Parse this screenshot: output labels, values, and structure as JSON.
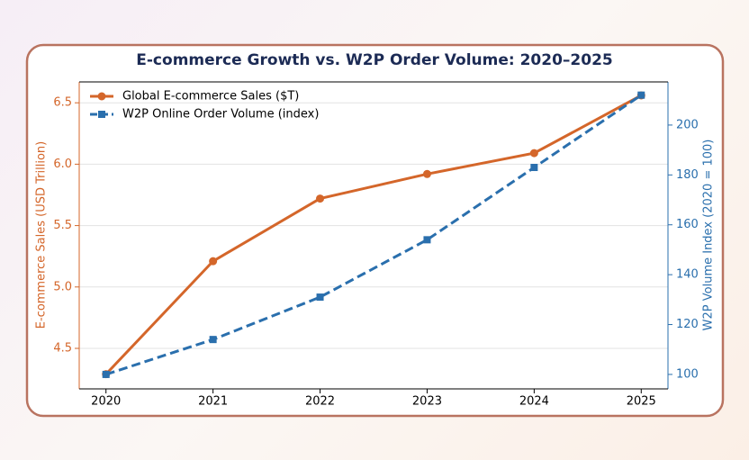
{
  "chart_data": {
    "type": "line",
    "title": "E-commerce Growth vs. W2P Order Volume: 2020–2025",
    "ylabel": "E-commerce Sales (USD Trillion)",
    "y2label": "W2P Volume Index (2020 = 100)",
    "x": [
      2020,
      2021,
      2022,
      2023,
      2024,
      2025
    ],
    "xlim": [
      2019.75,
      2025.25
    ],
    "xticks": [
      2020,
      2021,
      2022,
      2023,
      2024,
      2025
    ],
    "ylim": [
      4.17,
      6.67
    ],
    "yticks": [
      4.5,
      {
        "value": 5,
        "label": "5.0"
      },
      5.5,
      {
        "value": 6,
        "label": "6.0"
      },
      6.5
    ],
    "y2lim": [
      94.2,
      217.3
    ],
    "y2ticks": [
      100,
      120,
      140,
      160,
      180,
      200
    ],
    "grid": true,
    "legend": "upper left",
    "series": [
      {
        "name": "Global E-commerce Sales ($T)",
        "color": "#d4662a",
        "marker": "circle",
        "linestyle": "solid",
        "values": [
          4.29,
          5.21,
          5.72,
          5.92,
          6.09,
          6.56
        ]
      },
      {
        "name": "W2P Online Order Volume (index)",
        "color": "#2a6fad",
        "marker": "square",
        "linestyle": "dashed",
        "axis": "y2",
        "values": [
          100,
          114,
          131,
          154,
          183,
          212
        ]
      }
    ]
  }
}
